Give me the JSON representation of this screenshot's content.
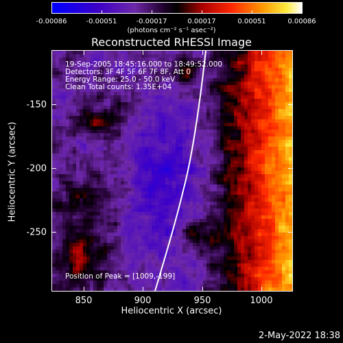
{
  "colorbar": {
    "tick_labels": [
      "-0.00086",
      "-0.00051",
      "-0.00017",
      "0.00017",
      "0.00051",
      "0.00086"
    ],
    "units": "(photons cm⁻² s⁻¹ asec⁻²)"
  },
  "title": "Reconstructed RHESSI Image",
  "info": {
    "time": "19-Sep-2005 18:45:16.000 to 18:49:52.000",
    "detectors": "Detectors: 3F 4F 5F 6F 7F 8F, Att 0",
    "energy": "Energy Range: 25.0 - 50.0 keV",
    "clean": "Clean     Total counts: 1.35E+04",
    "peak": "Position of Peak = [1009,-199]"
  },
  "axes": {
    "xlabel": "Heliocentric X (arcsec)",
    "ylabel": "Heliocentric Y (arcsec)",
    "xticks": [
      "850",
      "900",
      "950",
      "1000"
    ],
    "yticks": [
      "-150",
      "-200",
      "-250"
    ]
  },
  "timestamp": "2-May-2022 18:38"
}
